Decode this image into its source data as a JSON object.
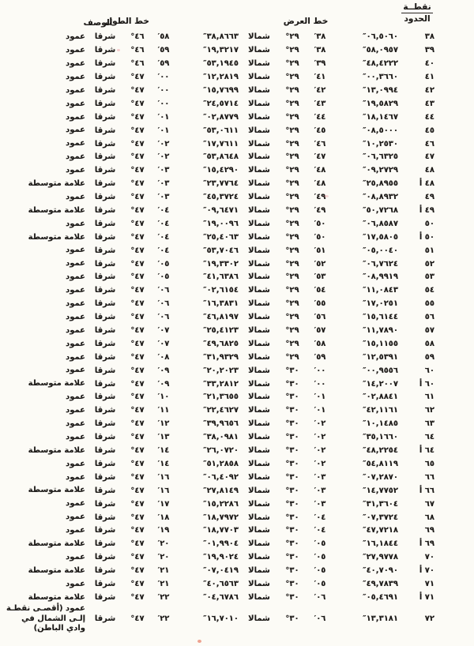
{
  "page": {
    "point_column_header": {
      "line1": "نقطــة",
      "line2": "الحدود"
    },
    "latitude_header": "خط العرض",
    "longitude_header": "خط الطول",
    "description_header": "الوصف",
    "north_label": "شمالا",
    "east_label": "شرقا",
    "units": {
      "degree": "°",
      "minute": "′",
      "second": "″"
    },
    "rows": [
      {
        "num": "٣٨",
        "lat_sec": "٠٦,٥٠٦٠",
        "lat_min": "٣٨",
        "lat_deg": "٢٩",
        "lon_sec": "٣٨,٨٦٦٣",
        "lon_min": "٥٨",
        "lon_deg": "٤٦",
        "desc": "عمود"
      },
      {
        "num": "٣٩",
        "lat_sec": "٥٨,٠٩٥٧",
        "lat_min": "٣٨",
        "lat_deg": "٢٩",
        "lon_sec": "١٩,٣٢١٧",
        "lon_min": "٥٩",
        "lon_deg": "٤٦",
        "desc": "عمود"
      },
      {
        "num": "٤٠",
        "lat_sec": "٤٨,٤٢٢٢",
        "lat_min": "٣٩",
        "lat_deg": "٢٩",
        "lon_sec": "٥٣,١٩٤٥",
        "lon_min": "٥٩",
        "lon_deg": "٤٦",
        "desc": "عمود"
      },
      {
        "num": "٤١",
        "lat_sec": "٠٠,٣٦٦٠",
        "lat_min": "٤١",
        "lat_deg": "٢٩",
        "lon_sec": "١٢,٢٨١٩",
        "lon_min": "٠٠",
        "lon_deg": "٤٧",
        "desc": "عمود"
      },
      {
        "num": "٤٢",
        "lat_sec": "١٣,٠٩٩٤",
        "lat_min": "٤٢",
        "lat_deg": "٢٩",
        "lon_sec": "١٥,٧٦٩٩",
        "lon_min": "٠٠",
        "lon_deg": "٤٧",
        "desc": "عمود"
      },
      {
        "num": "٤٣",
        "lat_sec": "١٩,٥٨٢٩",
        "lat_min": "٤٣",
        "lat_deg": "٢٩",
        "lon_sec": "٢٤,٥٧١٤",
        "lon_min": "٠٠",
        "lon_deg": "٤٧",
        "desc": "عمود"
      },
      {
        "num": "٤٤",
        "lat_sec": "١٨,١٤٦٧",
        "lat_min": "٤٤",
        "lat_deg": "٢٩",
        "lon_sec": "٠٢,٨٧٧٩",
        "lon_min": "٠١",
        "lon_deg": "٤٧",
        "desc": "عمود"
      },
      {
        "num": "٤٥",
        "lat_sec": "٠٨,٥٠٠٠",
        "lat_min": "٤٥",
        "lat_deg": "٢٩",
        "lon_sec": "٥٣,٠٦١١",
        "lon_min": "٠١",
        "lon_deg": "٤٧",
        "desc": "عمود"
      },
      {
        "num": "٤٦",
        "lat_sec": "١٠,٢٥٣٠",
        "lat_min": "٤٦",
        "lat_deg": "٢٩",
        "lon_sec": "١٧,٧٦١١",
        "lon_min": "٠٢",
        "lon_deg": "٤٧",
        "desc": "عمود"
      },
      {
        "num": "٤٧",
        "lat_sec": "٠٦,٦٣٢٥",
        "lat_min": "٤٧",
        "lat_deg": "٢٩",
        "lon_sec": "٥٣,٨٦٤٨",
        "lon_min": "٠٢",
        "lon_deg": "٤٧",
        "desc": "عمود"
      },
      {
        "num": "٤٨",
        "lat_sec": "٠٩,٢٧٢٩",
        "lat_min": "٤٨",
        "lat_deg": "٢٩",
        "lon_sec": "١٥,٤٢٩٠",
        "lon_min": "٠٣",
        "lon_deg": "٤٧",
        "desc": "عمود"
      },
      {
        "num": "٤٨ أ",
        "lat_sec": "٢٥,٨٩٥٥",
        "lat_min": "٤٨",
        "lat_deg": "٢٩",
        "lon_sec": "٢٣,٧٧٦٤",
        "lon_min": "٠٣",
        "lon_deg": "٤٧",
        "desc": "علامة متوسطة"
      },
      {
        "num": "٤٩",
        "lat_sec": "٠٨,٨٩٣٢",
        "lat_min": "٤٩",
        "lat_deg": "٢٩",
        "lon_sec": "٤٥,٣٧٢٤",
        "lon_min": "٠٣",
        "lon_deg": "٤٧",
        "desc": "عمود"
      },
      {
        "num": "٤٩ أ",
        "lat_sec": "٥٠,٧٢٦٨",
        "lat_min": "٤٩",
        "lat_deg": "٢٩",
        "lon_sec": "٠٩,٦٤٧١",
        "lon_min": "٠٤",
        "lon_deg": "٤٧",
        "desc": "علامة متوسطة"
      },
      {
        "num": "٥٠",
        "lat_sec": "٠٦,٨٥٨٧",
        "lat_min": "٥٠",
        "lat_deg": "٢٩",
        "lon_sec": "١٩,٠٠٩٦",
        "lon_min": "٠٤",
        "lon_deg": "٤٧",
        "desc": "عمود"
      },
      {
        "num": "٥٠ أ",
        "lat_sec": "١٧,٥٨٠٥",
        "lat_min": "٥٠",
        "lat_deg": "٢٩",
        "lon_sec": "٢٥,٤٠٦٣",
        "lon_min": "٠٤",
        "lon_deg": "٤٧",
        "desc": "علامة متوسطة"
      },
      {
        "num": "٥١",
        "lat_sec": "٠٥,٠٠٤٠",
        "lat_min": "٥١",
        "lat_deg": "٢٩",
        "lon_sec": "٥٣,٧٠٤٦",
        "lon_min": "٠٤",
        "lon_deg": "٤٧",
        "desc": "عمود"
      },
      {
        "num": "٥٢",
        "lat_sec": "٠٦,٧٦٢٤",
        "lat_min": "٥٢",
        "lat_deg": "٢٩",
        "lon_sec": "١٩,٣٣٠٢",
        "lon_min": "٠٥",
        "lon_deg": "٤٧",
        "desc": "عمود"
      },
      {
        "num": "٥٣",
        "lat_sec": "٠٨,٩٩١٩",
        "lat_min": "٥٣",
        "lat_deg": "٢٩",
        "lon_sec": "٤١,٦٣٨٦",
        "lon_min": "٠٥",
        "lon_deg": "٤٧",
        "desc": "عمود"
      },
      {
        "num": "٥٤",
        "lat_sec": "١١,٠٨٤٣",
        "lat_min": "٥٤",
        "lat_deg": "٢٩",
        "lon_sec": "٠٢,٦١٥٤",
        "lon_min": "٠٦",
        "lon_deg": "٤٧",
        "desc": "عمود"
      },
      {
        "num": "٥٥",
        "lat_sec": "١٧,٠٢٥١",
        "lat_min": "٥٥",
        "lat_deg": "٢٩",
        "lon_sec": "١٦,٣٨٣١",
        "lon_min": "٠٦",
        "lon_deg": "٤٧",
        "desc": "عمود"
      },
      {
        "num": "٥٦",
        "lat_sec": "١٥,٦١٤٤",
        "lat_min": "٥٦",
        "lat_deg": "٢٩",
        "lon_sec": "٤٦,٨١٩٧",
        "lon_min": "٠٦",
        "lon_deg": "٤٧",
        "desc": "عمود"
      },
      {
        "num": "٥٧",
        "lat_sec": "١١,٧٨٩٠",
        "lat_min": "٥٧",
        "lat_deg": "٢٩",
        "lon_sec": "٢٥,٤١٢٣",
        "lon_min": "٠٧",
        "lon_deg": "٤٧",
        "desc": "عمود"
      },
      {
        "num": "٥٨",
        "lat_sec": "١٥,١١٥٥",
        "lat_min": "٥٨",
        "lat_deg": "٢٩",
        "lon_sec": "٤٩,٦٨٢٥",
        "lon_min": "٠٧",
        "lon_deg": "٤٧",
        "desc": "عمود"
      },
      {
        "num": "٥٩",
        "lat_sec": "١٢,٥٣٩١",
        "lat_min": "٥٩",
        "lat_deg": "٢٩",
        "lon_sec": "٣١,٩٣٢٩",
        "lon_min": "٠٨",
        "lon_deg": "٤٧",
        "desc": "عمود"
      },
      {
        "num": "٦٠",
        "lat_sec": "٠٠,٩٥٥٦",
        "lat_min": "٠٠",
        "lat_deg": "٣٠",
        "lon_sec": "٢٠,٢٠٢٣",
        "lon_min": "٠٩",
        "lon_deg": "٤٧",
        "desc": "عمود"
      },
      {
        "num": "٦٠ أ",
        "lat_sec": "١٤,٢٠٠٧",
        "lat_min": "٠٠",
        "lat_deg": "٣٠",
        "lon_sec": "٣٣,٢٨١٢",
        "lon_min": "٠٩",
        "lon_deg": "٤٧",
        "desc": "علامة متوسطة"
      },
      {
        "num": "٦١",
        "lat_sec": "٠٢,٨٨٤١",
        "lat_min": "٠١",
        "lat_deg": "٣٠",
        "lon_sec": "٢١,٣٦٥٥",
        "lon_min": "١٠",
        "lon_deg": "٤٧",
        "desc": "عمود"
      },
      {
        "num": "٦٢",
        "lat_sec": "٤٢,١١٦١",
        "lat_min": "٠١",
        "lat_deg": "٣٠",
        "lon_sec": "٢٢,٤٦٢٧",
        "lon_min": "١١",
        "lon_deg": "٤٧",
        "desc": "عمود"
      },
      {
        "num": "٦٣",
        "lat_sec": "١٠,١٤٨٥",
        "lat_min": "٠٢",
        "lat_deg": "٣٠",
        "lon_sec": "٣٩,٩٦٥٦",
        "lon_min": "١٢",
        "lon_deg": "٤٧",
        "desc": "عمود"
      },
      {
        "num": "٦٤",
        "lat_sec": "٣٥,١٦٦٠",
        "lat_min": "٠٢",
        "lat_deg": "٣٠",
        "lon_sec": "٣٨,٠٩٨١",
        "lon_min": "١٣",
        "lon_deg": "٤٧",
        "desc": "عمود"
      },
      {
        "num": "٦٤ أ",
        "lat_sec": "٤٨,٢٢٥٤",
        "lat_min": "٠٢",
        "lat_deg": "٣٠",
        "lon_sec": "٢٦,٠٧٢٠",
        "lon_min": "١٤",
        "lon_deg": "٤٧",
        "desc": "علامة متوسطة"
      },
      {
        "num": "٦٥",
        "lat_sec": "٥٤,٨١١٩",
        "lat_min": "٠٢",
        "lat_deg": "٣٠",
        "lon_sec": "٥١,٢٨٥٨",
        "lon_min": "١٤",
        "lon_deg": "٤٧",
        "desc": "عمود"
      },
      {
        "num": "٦٦",
        "lat_sec": "٠٧,٢٨٧٠",
        "lat_min": "٠٣",
        "lat_deg": "٣٠",
        "lon_sec": "٠٦,٤٠٩٢",
        "lon_min": "١٦",
        "lon_deg": "٤٧",
        "desc": "عمود"
      },
      {
        "num": "٦٦ أ",
        "lat_sec": "١٤,٧٧٥٢",
        "lat_min": "٠٣",
        "lat_deg": "٣٠",
        "lon_sec": "٢٧,٨١٤٩",
        "lon_min": "١٦",
        "lon_deg": "٤٧",
        "desc": "علامة متوسطة"
      },
      {
        "num": "٦٧",
        "lat_sec": "٣١,٣٦٠٤",
        "lat_min": "٠٣",
        "lat_deg": "٣٠",
        "lon_sec": "١٥,٢٢٨٦",
        "lon_min": "١٧",
        "lon_deg": "٤٧",
        "desc": "عمود"
      },
      {
        "num": "٦٨",
        "lat_sec": "٠٧,٣٧٢٤",
        "lat_min": "٠٤",
        "lat_deg": "٣٠",
        "lon_sec": "١٨,٧٩٧٢",
        "lon_min": "١٨",
        "lon_deg": "٤٧",
        "desc": "عمود"
      },
      {
        "num": "٦٩",
        "lat_sec": "٤٧,٧٢١٨",
        "lat_min": "٠٤",
        "lat_deg": "٣٠",
        "lon_sec": "١٨,٧٧٠٣",
        "lon_min": "١٩",
        "lon_deg": "٤٧",
        "desc": "عمود"
      },
      {
        "num": "٦٩ أ",
        "lat_sec": "١٦,١٨٤٤",
        "lat_min": "٠٥",
        "lat_deg": "٣٠",
        "lon_sec": "٠١,٩٩٠٤",
        "lon_min": "٢٠",
        "lon_deg": "٤٧",
        "desc": "علامة متوسطة"
      },
      {
        "num": "٧٠",
        "lat_sec": "٢٧,٩٧٧٨",
        "lat_min": "٠٥",
        "lat_deg": "٣٠",
        "lon_sec": "١٩,٩٠٢٤",
        "lon_min": "٢٠",
        "lon_deg": "٤٧",
        "desc": "عمود"
      },
      {
        "num": "٧٠ أ",
        "lat_sec": "٤٠,٧٠٩٠",
        "lat_min": "٠٥",
        "lat_deg": "٣٠",
        "lon_sec": "٠٧,٠٤١٩",
        "lon_min": "٢١",
        "lon_deg": "٤٧",
        "desc": "علامة متوسطة"
      },
      {
        "num": "٧١",
        "lat_sec": "٤٩,٧٨٣٩",
        "lat_min": "٠٥",
        "lat_deg": "٣٠",
        "lon_sec": "٤٠,٦٥٦٣",
        "lon_min": "٢١",
        "lon_deg": "٤٧",
        "desc": "عمود"
      },
      {
        "num": "٧١ أ",
        "lat_sec": "٠٥,٤٦٩١",
        "lat_min": "٠٦",
        "lat_deg": "٣٠",
        "lon_sec": "٠٤,٦٧٨٦",
        "lon_min": "٢٢",
        "lon_deg": "٤٧",
        "desc": "علامة متوسطة"
      },
      {
        "num": "٧٢",
        "lat_sec": "١٣,٣١٨١",
        "lat_min": "٠٦",
        "lat_deg": "٣٠",
        "lon_sec": "١٦,٧٠١٠",
        "lon_min": "٢٢",
        "lon_deg": "٤٧",
        "desc": "عمود (أقصـى نقطـة إلـى الشمال في وادي الباطن)"
      }
    ]
  }
}
